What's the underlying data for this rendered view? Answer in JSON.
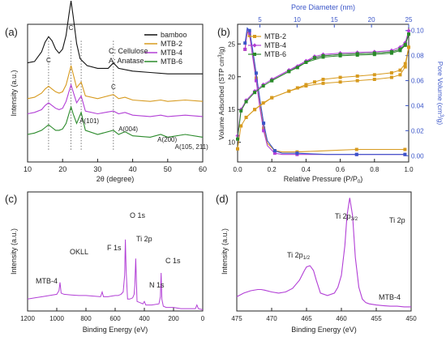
{
  "chart_data": [
    {
      "panel": "(a)",
      "type": "line",
      "xlabel": "2θ (degree)",
      "ylabel": "Intensity (a.u.)",
      "xlim": [
        10,
        60
      ],
      "xticks": [
        10,
        20,
        30,
        40,
        50,
        60
      ],
      "legend_position": "top-right",
      "annotation_legend": [
        "C: Cellulose",
        "A: Anatase"
      ],
      "peak_labels": [
        {
          "text": "C",
          "x": 16.0
        },
        {
          "text": "C",
          "x": 22.4
        },
        {
          "text": "C",
          "x": 34.5
        },
        {
          "text": "A(101)",
          "x": 25.3
        },
        {
          "text": "A(004)",
          "x": 37.8
        },
        {
          "text": "A(200)",
          "x": 48.0
        },
        {
          "text": "A(105, 211)",
          "x": 54.5
        }
      ],
      "series": [
        {
          "name": "bamboo",
          "color": "#111111",
          "offset": 0.62,
          "x": [
            10,
            12,
            14,
            15,
            16,
            17,
            18,
            19,
            20,
            21,
            21.8,
            22.4,
            23,
            24,
            25,
            27,
            30,
            33,
            34.5,
            36,
            40,
            45,
            50,
            55,
            60
          ],
          "y": [
            0.1,
            0.11,
            0.18,
            0.25,
            0.29,
            0.26,
            0.2,
            0.17,
            0.2,
            0.3,
            0.45,
            0.55,
            0.44,
            0.24,
            0.13,
            0.08,
            0.06,
            0.06,
            0.1,
            0.06,
            0.04,
            0.03,
            0.02,
            0.02,
            0.02
          ]
        },
        {
          "name": "MTB-2",
          "color": "#d79a1e",
          "offset": 0.44,
          "x": [
            10,
            12,
            14,
            15,
            16,
            17,
            18,
            19,
            20,
            21,
            21.8,
            22.4,
            23,
            24,
            25.3,
            26.5,
            30,
            34.5,
            36,
            37.8,
            40,
            45,
            48,
            50,
            55,
            60
          ],
          "y": [
            0.02,
            0.03,
            0.06,
            0.09,
            0.11,
            0.09,
            0.07,
            0.06,
            0.07,
            0.12,
            0.2,
            0.26,
            0.2,
            0.1,
            0.14,
            0.04,
            0.02,
            0.05,
            0.02,
            0.03,
            0.01,
            0.0,
            0.01,
            0.0,
            0.01,
            0.0
          ]
        },
        {
          "name": "MTB-4",
          "color": "#b23fd6",
          "offset": 0.33,
          "x": [
            10,
            12,
            14,
            15,
            16,
            17,
            18,
            19,
            20,
            21,
            21.8,
            22.4,
            23,
            24,
            25.3,
            26.5,
            30,
            34.5,
            36,
            37.8,
            40,
            45,
            48,
            50,
            55,
            60
          ],
          "y": [
            0.02,
            0.03,
            0.05,
            0.08,
            0.1,
            0.08,
            0.06,
            0.05,
            0.06,
            0.11,
            0.18,
            0.23,
            0.18,
            0.1,
            0.15,
            0.04,
            0.02,
            0.04,
            0.02,
            0.03,
            0.01,
            0.0,
            0.01,
            0.0,
            0.01,
            0.0
          ]
        },
        {
          "name": "MTB-6",
          "color": "#2a8a2a",
          "offset": 0.18,
          "x": [
            10,
            12,
            14,
            15,
            16,
            17,
            18,
            19,
            20,
            21,
            21.8,
            22.4,
            23,
            24,
            25.3,
            26.5,
            30,
            34.5,
            36,
            37.8,
            40,
            45,
            48,
            50,
            55,
            60
          ],
          "y": [
            0.02,
            0.03,
            0.05,
            0.07,
            0.09,
            0.07,
            0.05,
            0.05,
            0.06,
            0.1,
            0.17,
            0.22,
            0.17,
            0.1,
            0.18,
            0.05,
            0.02,
            0.05,
            0.02,
            0.04,
            0.01,
            0.0,
            0.02,
            0.0,
            0.02,
            0.0
          ]
        }
      ]
    },
    {
      "panel": "(b)",
      "type": "line",
      "xlabel": "Relative Pressure (P/P",
      "xlabel_sub": "0",
      "xlabel_end": ")",
      "ylabel": "Volume Adsorbed (STP cm",
      "ylabel_sup": "3",
      "ylabel_end": "/g)",
      "y2label": "Pore Volume (cm",
      "y2label_sup": "3",
      "y2label_end": "/g)",
      "x2label": "Pore Diameter (nm)",
      "xlim": [
        0.0,
        1.0
      ],
      "xticks": [
        "0.0",
        "0.2",
        "0.4",
        "0.6",
        "0.8",
        "1.0"
      ],
      "ylim": [
        7,
        28
      ],
      "yticks": [
        10,
        15,
        20,
        25
      ],
      "y2lim": [
        -0.005,
        0.105
      ],
      "y2ticks": [
        "0.00",
        "0.02",
        "0.04",
        "0.06",
        "0.08",
        "0.10"
      ],
      "x2lim": [
        2,
        25
      ],
      "x2ticks": [
        5,
        10,
        15,
        20,
        25
      ],
      "legend_position": "top-left",
      "isotherms": [
        {
          "name": "MTB-2",
          "color": "#d79a1e",
          "marker": "square",
          "adsorption": {
            "x": [
              0.0,
              0.02,
              0.05,
              0.1,
              0.15,
              0.2,
              0.3,
              0.4,
              0.5,
              0.6,
              0.7,
              0.8,
              0.9,
              0.95,
              0.98,
              1.0
            ],
            "y": [
              9.0,
              12.5,
              13.8,
              15.0,
              16.0,
              16.8,
              17.8,
              18.6,
              19.0,
              19.2,
              19.4,
              19.6,
              19.9,
              20.3,
              21.5,
              24.5
            ]
          },
          "desorption": {
            "x": [
              1.0,
              0.98,
              0.95,
              0.9,
              0.8,
              0.7,
              0.6,
              0.5,
              0.45,
              0.4,
              0.35,
              0.3,
              0.2,
              0.1,
              0.05
            ],
            "y": [
              24.5,
              22.0,
              21.0,
              20.6,
              20.3,
              20.1,
              19.9,
              19.6,
              19.2,
              18.8,
              18.3,
              17.8,
              16.8,
              15.0,
              13.8
            ]
          }
        },
        {
          "name": "MTB-4",
          "color": "#b23fd6",
          "marker": "diamond",
          "adsorption": {
            "x": [
              0.0,
              0.02,
              0.05,
              0.1,
              0.15,
              0.2,
              0.3,
              0.4,
              0.5,
              0.6,
              0.7,
              0.8,
              0.9,
              0.95,
              0.98,
              1.0
            ],
            "y": [
              11.0,
              15.0,
              16.4,
              17.8,
              18.8,
              19.6,
              21.0,
              22.4,
              23.2,
              23.4,
              23.5,
              23.6,
              23.8,
              24.2,
              25.0,
              27.0
            ]
          },
          "desorption": {
            "x": [
              1.0,
              0.98,
              0.95,
              0.9,
              0.8,
              0.7,
              0.6,
              0.5,
              0.45,
              0.4,
              0.35,
              0.3,
              0.2
            ],
            "y": [
              27.0,
              25.2,
              24.5,
              24.0,
              23.8,
              23.7,
              23.6,
              23.4,
              23.1,
              22.4,
              21.6,
              21.0,
              19.6
            ]
          }
        },
        {
          "name": "MTB-6",
          "color": "#2a8a2a",
          "marker": "square",
          "adsorption": {
            "x": [
              0.0,
              0.02,
              0.05,
              0.1,
              0.15,
              0.2,
              0.3,
              0.4,
              0.5,
              0.6,
              0.7,
              0.8,
              0.9,
              0.95,
              0.98,
              1.0
            ],
            "y": [
              10.5,
              14.8,
              16.2,
              17.6,
              18.6,
              19.4,
              20.8,
              22.2,
              23.0,
              23.2,
              23.3,
              23.4,
              23.6,
              24.0,
              24.8,
              26.5
            ]
          },
          "desorption": {
            "x": [
              1.0,
              0.98,
              0.95,
              0.9,
              0.8,
              0.7,
              0.6,
              0.5,
              0.45,
              0.4,
              0.35,
              0.3,
              0.2
            ],
            "y": [
              26.5,
              24.9,
              24.2,
              23.8,
              23.6,
              23.5,
              23.4,
              23.2,
              22.9,
              22.2,
              21.4,
              20.8,
              19.4
            ]
          }
        }
      ],
      "pore_size_distributions": [
        {
          "name": "MTB-2",
          "color": "#d79a1e",
          "x": [
            3.0,
            3.3,
            3.6,
            4.0,
            4.5,
            5.0,
            5.5,
            6.0,
            7.0,
            8.0,
            10.0,
            14.0,
            18.0,
            22.0,
            24.5
          ],
          "y": [
            0.085,
            0.099,
            0.096,
            0.082,
            0.062,
            0.04,
            0.022,
            0.01,
            0.004,
            0.003,
            0.003,
            0.004,
            0.005,
            0.005,
            0.005
          ]
        },
        {
          "name": "MTB-4",
          "color": "#b23fd6",
          "x": [
            3.0,
            3.3,
            3.6,
            4.0,
            4.5,
            5.0,
            5.5,
            6.0,
            7.0,
            8.0,
            10.0,
            14.0,
            18.0,
            22.0,
            24.5
          ],
          "y": [
            0.085,
            0.101,
            0.098,
            0.08,
            0.06,
            0.038,
            0.02,
            0.008,
            0.002,
            0.001,
            0.001,
            0.001,
            0.001,
            0.001,
            0.001
          ]
        },
        {
          "name": "MTB-6",
          "color": "#3a55c8",
          "x": [
            3.0,
            3.3,
            3.6,
            4.0,
            4.5,
            5.0,
            5.5,
            6.0,
            7.0,
            8.0,
            10.0,
            14.0,
            18.0,
            22.0,
            24.5
          ],
          "y": [
            0.09,
            0.102,
            0.1,
            0.086,
            0.066,
            0.045,
            0.026,
            0.012,
            0.004,
            0.002,
            0.002,
            0.001,
            0.001,
            0.001,
            0.001
          ]
        }
      ]
    },
    {
      "panel": "(c)",
      "type": "line",
      "xlabel": "Binding Energy (eV)",
      "ylabel": "Intensity (a.u.)",
      "xlim": [
        1200,
        0
      ],
      "xticks": [
        1200,
        1000,
        800,
        600,
        400,
        200,
        0
      ],
      "series_label": "MTB-4",
      "peak_labels": [
        {
          "text": "OKLL",
          "x": 978
        },
        {
          "text": "F 1s",
          "x": 689
        },
        {
          "text": "O 1s",
          "x": 530
        },
        {
          "text": "Ti 2p",
          "x": 459
        },
        {
          "text": "N 1s",
          "x": 400
        },
        {
          "text": "C 1s",
          "x": 285
        }
      ],
      "series": [
        {
          "name": "MTB-4",
          "color": "#b23fd6",
          "x": [
            1200,
            1150,
            1100,
            1050,
            1000,
            985,
            978,
            970,
            950,
            900,
            850,
            800,
            750,
            700,
            689,
            680,
            650,
            600,
            580,
            560,
            545,
            535,
            530,
            525,
            515,
            500,
            480,
            470,
            465,
            459,
            455,
            450,
            430,
            410,
            400,
            390,
            350,
            300,
            290,
            285,
            280,
            270,
            250,
            200,
            150,
            100,
            50,
            40,
            30,
            0
          ],
          "y": [
            0.1,
            0.11,
            0.12,
            0.13,
            0.14,
            0.17,
            0.24,
            0.15,
            0.14,
            0.135,
            0.13,
            0.13,
            0.125,
            0.12,
            0.16,
            0.12,
            0.12,
            0.13,
            0.13,
            0.14,
            0.16,
            0.3,
            0.6,
            0.35,
            0.1,
            0.1,
            0.11,
            0.14,
            0.22,
            0.44,
            0.28,
            0.08,
            0.07,
            0.06,
            0.08,
            0.05,
            0.05,
            0.06,
            0.12,
            0.32,
            0.1,
            0.04,
            0.03,
            0.03,
            0.02,
            0.02,
            0.02,
            0.05,
            0.02,
            0.01
          ]
        }
      ]
    },
    {
      "panel": "(d)",
      "type": "line",
      "xlabel": "Binding Energy (eV)",
      "ylabel": "Intensity (a.u.)",
      "xlim": [
        475,
        450
      ],
      "xticks": [
        475,
        470,
        465,
        460,
        455,
        450
      ],
      "corner_label": "Ti 2p",
      "series_label": "MTB-4",
      "peak_labels": [
        {
          "text": "Ti 2p",
          "sub": "1/2",
          "x": 464.5
        },
        {
          "text": "Ti 2p",
          "sub": "3/2",
          "x": 458.8
        }
      ],
      "series": [
        {
          "name": "MTB-4",
          "color": "#b23fd6",
          "x": [
            475,
            474,
            473,
            472,
            471.5,
            471,
            470,
            469,
            468,
            467,
            466,
            465.3,
            465,
            464.5,
            464,
            463.6,
            463,
            462,
            461,
            460.5,
            460,
            459.5,
            459.2,
            458.8,
            458.4,
            458,
            457.5,
            457,
            456.5,
            456,
            455,
            454,
            453,
            452,
            451,
            450
          ],
          "y": [
            0.12,
            0.15,
            0.17,
            0.18,
            0.18,
            0.175,
            0.16,
            0.15,
            0.16,
            0.19,
            0.26,
            0.34,
            0.37,
            0.38,
            0.34,
            0.26,
            0.15,
            0.13,
            0.15,
            0.2,
            0.3,
            0.55,
            0.8,
            0.95,
            0.8,
            0.45,
            0.2,
            0.1,
            0.07,
            0.06,
            0.05,
            0.045,
            0.04,
            0.04,
            0.035,
            0.035
          ]
        }
      ]
    }
  ]
}
